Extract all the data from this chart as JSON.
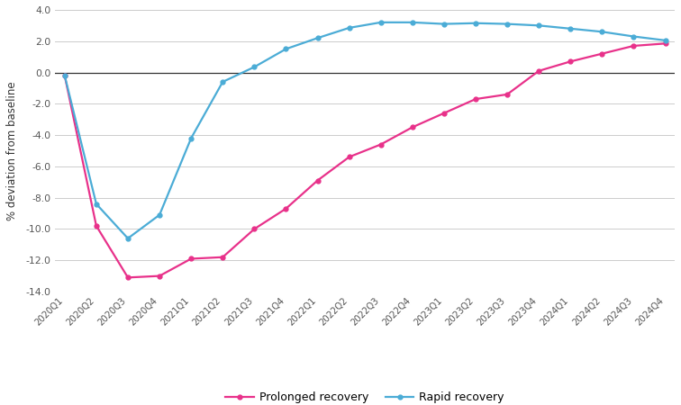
{
  "labels": [
    "2020Q1",
    "2020Q2",
    "2020Q3",
    "2020Q4",
    "2021Q1",
    "2021Q2",
    "2021Q3",
    "2021Q4",
    "2022Q1",
    "2022Q2",
    "2022Q3",
    "2022Q4",
    "2023Q1",
    "2023Q2",
    "2023Q3",
    "2023Q4",
    "2024Q1",
    "2024Q2",
    "2024Q3",
    "2024Q4"
  ],
  "prolonged": [
    -0.2,
    -9.8,
    -13.1,
    -13.0,
    -11.9,
    -11.8,
    -10.0,
    -8.7,
    -6.9,
    -5.4,
    -4.6,
    -3.5,
    -2.6,
    -1.7,
    -1.4,
    0.1,
    0.7,
    1.2,
    1.7,
    1.85
  ],
  "rapid": [
    -0.2,
    -8.4,
    -10.6,
    -9.1,
    -4.2,
    -0.6,
    0.35,
    1.5,
    2.2,
    2.85,
    3.2,
    3.2,
    3.1,
    3.15,
    3.1,
    3.0,
    2.8,
    2.6,
    2.3,
    2.05
  ],
  "prolonged_color": "#e8318a",
  "rapid_color": "#4bacd6",
  "ylabel": "% deviation from baseline",
  "ylim": [
    -14.0,
    4.0
  ],
  "yticks": [
    -14.0,
    -12.0,
    -10.0,
    -8.0,
    -6.0,
    -4.0,
    -2.0,
    0.0,
    2.0,
    4.0
  ],
  "legend_prolonged": "Prolonged recovery",
  "legend_rapid": "Rapid recovery",
  "background_color": "#ffffff",
  "grid_color": "#cccccc"
}
